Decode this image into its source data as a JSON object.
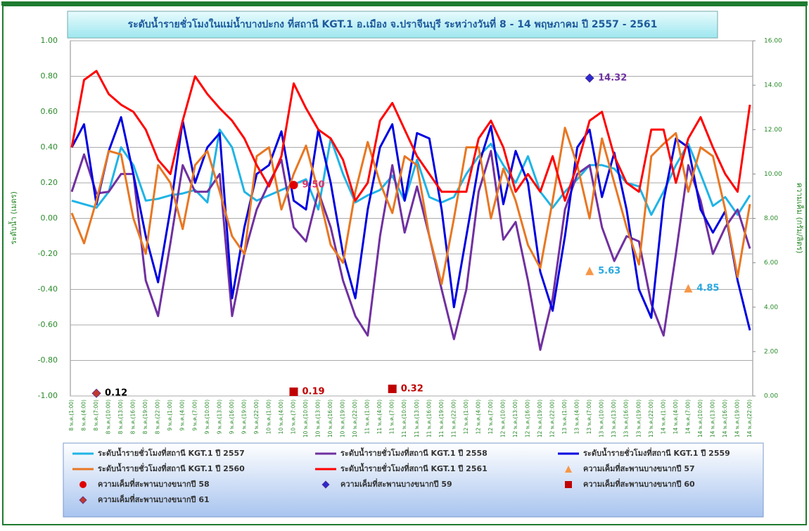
{
  "chart_data": {
    "type": "line",
    "title": "ระดับน้ำรายชั่วโมงในแม่น้ำบางปะกง ที่สถานี KGT.1 อ.เมือง จ.ปราจีนบุรี ระหว่างวันที่ 8 - 14 พฤษภาคม ปี 2557 - 2561",
    "y_label": "ระดับน้ำ (เมตร)",
    "y2_label": "ความเค็ม (กรัม/ลิตร)",
    "categories": [
      "8 พ.ค.(1:00)",
      "8 พ.ค.(4:00)",
      "8 พ.ค.(7:00)",
      "8 พ.ค.(10:00)",
      "8 พ.ค.(13:00)",
      "8 พ.ค.(16:00)",
      "8 พ.ค.(19:00)",
      "8 พ.ค.(22:00)",
      "9 พ.ค.(1:00)",
      "9 พ.ค.(4:00)",
      "9 พ.ค.(7:00)",
      "9 พ.ค.(10:00)",
      "9 พ.ค.(13:00)",
      "9 พ.ค.(16:00)",
      "9 พ.ค.(19:00)",
      "9 พ.ค.(22:00)",
      "10 พ.ค.(1:00)",
      "10 พ.ค.(4:00)",
      "10 พ.ค.(7:00)",
      "10 พ.ค.(10:00)",
      "10 พ.ค.(13:00)",
      "10 พ.ค.(16:00)",
      "10 พ.ค.(19:00)",
      "10 พ.ค.(22:00)",
      "11 พ.ค.(1:00)",
      "11 พ.ค.(4:00)",
      "11 พ.ค.(7:00)",
      "11 พ.ค.(10:00)",
      "11 พ.ค.(13:00)",
      "11 พ.ค.(16:00)",
      "11 พ.ค.(19:00)",
      "11 พ.ค.(22:00)",
      "12 พ.ค.(1:00)",
      "12 พ.ค.(4:00)",
      "12 พ.ค.(7:00)",
      "12 พ.ค.(10:00)",
      "12 พ.ค.(13:00)",
      "12 พ.ค.(16:00)",
      "12 พ.ค.(19:00)",
      "12 พ.ค.(22:00)",
      "13 พ.ค.(1:00)",
      "13 พ.ค.(4:00)",
      "13 พ.ค.(7:00)",
      "13 พ.ค.(10:00)",
      "13 พ.ค.(13:00)",
      "13 พ.ค.(16:00)",
      "13 พ.ค.(19:00)",
      "13 พ.ค.(22:00)",
      "14 พ.ค.(1:00)",
      "14 พ.ค.(4:00)",
      "14 พ.ค.(7:00)",
      "14 พ.ค.(10:00)",
      "14 พ.ค.(13:00)",
      "14 พ.ค.(16:00)",
      "14 พ.ค.(19:00)",
      "14 พ.ค.(22:00)"
    ],
    "ylim": [
      -1,
      1
    ],
    "yticks": [
      {
        "value": -1,
        "label": "-1.00"
      },
      {
        "value": -0.8,
        "label": "-0.80"
      },
      {
        "value": -0.6,
        "label": "-0.60"
      },
      {
        "value": -0.4,
        "label": "-0.40"
      },
      {
        "value": -0.2,
        "label": "-0.20"
      },
      {
        "value": 0,
        "label": "0.00"
      },
      {
        "value": 0.2,
        "label": "0.20"
      },
      {
        "value": 0.4,
        "label": "0.40"
      },
      {
        "value": 0.6,
        "label": "0.60"
      },
      {
        "value": 0.8,
        "label": "0.80"
      },
      {
        "value": 1,
        "label": "1.00"
      }
    ],
    "y2lim": [
      0,
      16
    ],
    "y2ticks": [
      {
        "value": 0,
        "label": "0.00"
      },
      {
        "value": 2,
        "label": "2.00"
      },
      {
        "value": 4,
        "label": "4.00"
      },
      {
        "value": 6,
        "label": "6.00"
      },
      {
        "value": 8,
        "label": "8.00"
      },
      {
        "value": 10,
        "label": "10.00"
      },
      {
        "value": 12,
        "label": "12.00"
      },
      {
        "value": 14,
        "label": "14.00"
      },
      {
        "value": 16,
        "label": "16.00"
      }
    ],
    "grid": true,
    "series": [
      {
        "name": "ระดับน้ำรายชั่วโมงที่สถานี KGT.1  ปี 2557",
        "color": "#1fb4e6",
        "values": [
          0.1,
          0.08,
          0.06,
          0.15,
          0.4,
          0.3,
          0.1,
          0.11,
          0.13,
          0.14,
          0.16,
          0.09,
          0.5,
          0.4,
          0.15,
          0.1,
          0.13,
          0.16,
          0.19,
          0.22,
          0.05,
          0.45,
          0.25,
          0.09,
          0.13,
          0.16,
          0.24,
          0.1,
          0.33,
          0.12,
          0.09,
          0.12,
          0.25,
          0.35,
          0.42,
          0.3,
          0.2,
          0.35,
          0.15,
          0.06,
          0.15,
          0.22,
          0.3,
          0.3,
          0.28,
          0.2,
          0.18,
          0.02,
          0.15,
          0.3,
          0.42,
          0.25,
          0.07,
          0.12,
          0.02,
          0.13
        ]
      },
      {
        "name": "ระดับน้ำรายชั่วโมงที่สถานี KGT.1  ปี 2558",
        "color": "#7030a0",
        "values": [
          0.15,
          0.36,
          0.14,
          0.15,
          0.25,
          0.25,
          -0.35,
          -0.55,
          -0.14,
          0.3,
          0.15,
          0.15,
          0.25,
          -0.55,
          -0.2,
          0.05,
          0.2,
          0.33,
          -0.05,
          -0.13,
          0.15,
          -0.05,
          -0.35,
          -0.55,
          -0.66,
          -0.1,
          0.3,
          -0.08,
          0.18,
          -0.1,
          -0.4,
          -0.68,
          -0.4,
          0.15,
          0.38,
          -0.12,
          -0.02,
          -0.35,
          -0.74,
          -0.45,
          0.05,
          0.25,
          0.3,
          -0.05,
          -0.24,
          -0.1,
          -0.13,
          -0.48,
          -0.66,
          -0.2,
          0.3,
          0.1,
          -0.2,
          -0.05,
          0.05,
          -0.17
        ]
      },
      {
        "name": "ระดับน้ำรายชั่วโมงที่สถานี KGT.1 ปี 2559",
        "color": "#0000e0",
        "values": [
          0.4,
          0.53,
          0.08,
          0.38,
          0.57,
          0.25,
          -0.1,
          -0.36,
          0.05,
          0.55,
          0.2,
          0.4,
          0.48,
          -0.45,
          -0.05,
          0.25,
          0.3,
          0.49,
          0.1,
          0.05,
          0.5,
          0.2,
          -0.2,
          -0.45,
          0.05,
          0.4,
          0.53,
          0.1,
          0.48,
          0.45,
          0.05,
          -0.5,
          -0.1,
          0.3,
          0.52,
          0.08,
          0.38,
          0.2,
          -0.3,
          -0.52,
          -0.1,
          0.4,
          0.5,
          0.12,
          0.37,
          0.05,
          -0.4,
          -0.56,
          0.1,
          0.45,
          0.4,
          0.05,
          -0.08,
          0.04,
          -0.35,
          -0.63
        ]
      },
      {
        "name": "ระดับน้ำรายชั่วโมงที่สถานี KGT.1 ปี 2560",
        "color": "#e87722",
        "values": [
          0.03,
          -0.14,
          0.1,
          0.38,
          0.36,
          0.0,
          -0.2,
          0.3,
          0.2,
          -0.06,
          0.3,
          0.38,
          0.15,
          -0.1,
          -0.2,
          0.35,
          0.4,
          0.05,
          0.25,
          0.41,
          0.15,
          -0.15,
          -0.25,
          0.15,
          0.43,
          0.2,
          0.03,
          0.35,
          0.3,
          -0.1,
          -0.37,
          0.0,
          0.4,
          0.4,
          0.0,
          0.28,
          0.1,
          -0.15,
          -0.28,
          0.1,
          0.51,
          0.3,
          0.0,
          0.45,
          0.2,
          -0.05,
          -0.26,
          0.35,
          0.42,
          0.48,
          0.15,
          0.4,
          0.35,
          0.05,
          -0.33,
          0.08
        ]
      },
      {
        "name": "ระดับน้ำรายชั่วโมงที่สถานี KGT.1 ปี 2561",
        "color": "#ff0000",
        "values": [
          0.4,
          0.78,
          0.83,
          0.7,
          0.64,
          0.6,
          0.5,
          0.33,
          0.25,
          0.55,
          0.8,
          0.7,
          0.62,
          0.55,
          0.45,
          0.3,
          0.18,
          0.35,
          0.76,
          0.62,
          0.5,
          0.45,
          0.33,
          0.1,
          0.2,
          0.55,
          0.65,
          0.5,
          0.35,
          0.25,
          0.15,
          0.15,
          0.15,
          0.45,
          0.55,
          0.4,
          0.15,
          0.25,
          0.15,
          0.35,
          0.1,
          0.3,
          0.55,
          0.6,
          0.35,
          0.2,
          0.15,
          0.5,
          0.5,
          0.2,
          0.45,
          0.57,
          0.4,
          0.25,
          0.15,
          0.64
        ]
      },
      {
        "name": "ความเค็มที่สะพานบางขนากปี 57",
        "type": "scatter",
        "axis": "y2",
        "marker": "triangle",
        "color": "#f79646",
        "label_color": "#29a9e0",
        "x": [
          "13 พ.ค.(7:00)",
          "14 พ.ค.(7:00)"
        ],
        "values": [
          5.63,
          4.85
        ]
      },
      {
        "name": "ความเค็มที่สะพานบางขนากปี 58",
        "type": "scatter",
        "axis": "y2",
        "marker": "circle",
        "color": "#e00000",
        "label_color": "#e0306a",
        "x": [
          "10 พ.ค.(7:00)"
        ],
        "values": [
          9.5
        ],
        "value_labels": [
          "9.50"
        ]
      },
      {
        "name": "ความเค็มที่สะพานบางขนากปี 59",
        "type": "scatter",
        "axis": "y2",
        "marker": "diamond",
        "color": "#2a2ad0",
        "label_color": "#7030a0",
        "x": [
          "13 พ.ค.(7:00)"
        ],
        "values": [
          14.32
        ]
      },
      {
        "name": "ความเค็มที่สะพานบางขนากปี 60",
        "type": "scatter",
        "axis": "y2",
        "marker": "square",
        "color": "#c00000",
        "label_color": "#c00000",
        "x": [
          "10 พ.ค.(7:00)",
          "11 พ.ค.(7:00)"
        ],
        "values": [
          0.19,
          0.32
        ]
      },
      {
        "name": "ความเค็มที่สะพานบางขนากปี 61",
        "type": "scatter",
        "axis": "y2",
        "marker": "diamond",
        "color": "#c0392b",
        "label_color": "#000000",
        "x": [
          "8 พ.ค.(7:00)"
        ],
        "values": [
          0.12
        ]
      }
    ]
  }
}
